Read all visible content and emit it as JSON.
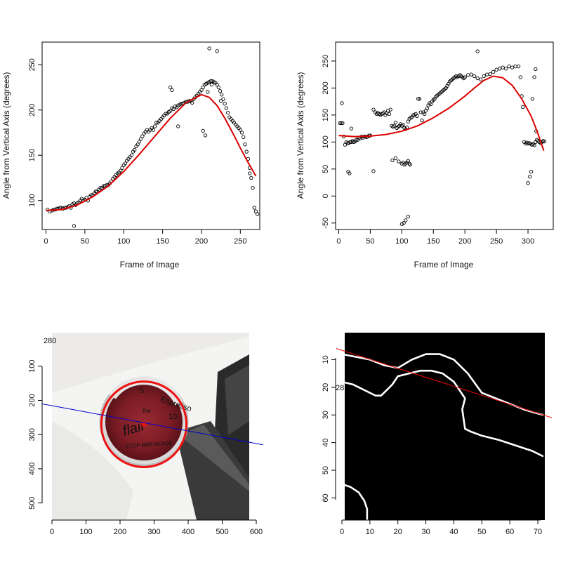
{
  "chart_data": [
    {
      "type": "scatter",
      "title": "",
      "xlabel": "Frame of Image",
      "ylabel": "Angle from Vertical Axis (degrees)",
      "xlim": [
        -5,
        275
      ],
      "ylim": [
        68,
        275
      ],
      "xticks": [
        0,
        50,
        100,
        150,
        200,
        250
      ],
      "yticks": [
        100,
        150,
        200,
        250
      ],
      "grid": false,
      "series": [
        {
          "kind": "points",
          "color": "#000000",
          "x": [
            2,
            5,
            8,
            10,
            12,
            14,
            16,
            18,
            20,
            22,
            24,
            26,
            28,
            30,
            32,
            34,
            36,
            38,
            40,
            42,
            44,
            46,
            48,
            50,
            52,
            54,
            56,
            58,
            60,
            62,
            64,
            66,
            68,
            70,
            72,
            74,
            76,
            78,
            80,
            82,
            84,
            86,
            88,
            90,
            92,
            94,
            96,
            98,
            100,
            102,
            104,
            106,
            108,
            110,
            112,
            114,
            116,
            118,
            120,
            122,
            124,
            126,
            128,
            130,
            132,
            134,
            136,
            138,
            140,
            142,
            144,
            146,
            148,
            150,
            152,
            154,
            156,
            158,
            160,
            162,
            164,
            166,
            168,
            170,
            172,
            174,
            176,
            178,
            180,
            182,
            184,
            186,
            188,
            190,
            192,
            194,
            196,
            198,
            200,
            202,
            204,
            206,
            208,
            210,
            212,
            214,
            216,
            218,
            220,
            222,
            224,
            226,
            228,
            230,
            232,
            234,
            236,
            238,
            240,
            242,
            244,
            246,
            248,
            250,
            252,
            254,
            256,
            258,
            260,
            262,
            264,
            266,
            268,
            270,
            272,
            36,
            160,
            162,
            170,
            202,
            205,
            208,
            210,
            213,
            220,
            225,
            262
          ],
          "y": [
            90,
            88,
            89,
            90,
            90,
            91,
            91,
            92,
            92,
            91,
            92,
            92,
            93,
            94,
            92,
            96,
            97,
            95,
            97,
            98,
            100,
            102,
            100,
            101,
            103,
            100,
            104,
            106,
            106,
            108,
            110,
            110,
            112,
            114,
            114,
            116,
            116,
            117,
            117,
            119,
            121,
            124,
            126,
            128,
            130,
            131,
            133,
            136,
            139,
            141,
            144,
            146,
            148,
            150,
            154,
            156,
            160,
            162,
            165,
            168,
            171,
            174,
            176,
            178,
            176,
            178,
            180,
            178,
            182,
            186,
            186,
            188,
            190,
            192,
            194,
            196,
            196,
            198,
            199,
            202,
            201,
            204,
            203,
            205,
            206,
            207,
            207,
            208,
            209,
            209,
            210,
            210,
            208,
            212,
            214,
            216,
            218,
            220,
            222,
            225,
            228,
            229,
            230,
            231,
            232,
            232,
            231,
            230,
            228,
            225,
            221,
            217,
            212,
            207,
            202,
            197,
            192,
            190,
            188,
            186,
            184,
            182,
            180,
            178,
            175,
            170,
            162,
            154,
            146,
            136,
            125,
            114,
            92,
            88,
            85,
            72,
            225,
            222,
            182,
            177,
            172,
            220,
            268,
            228,
            265,
            210,
            130
          ]
        },
        {
          "kind": "fit",
          "color": "#dd0000",
          "x": [
            0,
            20,
            40,
            60,
            80,
            100,
            120,
            140,
            160,
            180,
            200,
            210,
            220,
            230,
            240,
            250,
            260,
            270
          ],
          "y": [
            89,
            90,
            95,
            104,
            116,
            132,
            151,
            171,
            191,
            208,
            217,
            214,
            205,
            191,
            175,
            158,
            142,
            127
          ]
        }
      ]
    },
    {
      "type": "scatter",
      "title": "",
      "xlabel": "Frame of Image",
      "ylabel": "Angle from Vertical Axis (degrees)",
      "xlim": [
        -5,
        340
      ],
      "ylim": [
        -62,
        285
      ],
      "xticks": [
        0,
        50,
        100,
        150,
        200,
        250,
        300
      ],
      "yticks": [
        -50,
        0,
        50,
        100,
        150,
        200,
        250
      ],
      "grid": false,
      "series": [
        {
          "kind": "points",
          "color": "#000000",
          "x": [
            2,
            4,
            6,
            8,
            10,
            12,
            14,
            16,
            18,
            20,
            22,
            24,
            26,
            28,
            30,
            32,
            34,
            36,
            38,
            40,
            42,
            44,
            46,
            48,
            50,
            55,
            58,
            60,
            62,
            64,
            66,
            68,
            70,
            72,
            74,
            76,
            78,
            80,
            82,
            84,
            86,
            88,
            90,
            92,
            94,
            96,
            98,
            100,
            102,
            104,
            106,
            108,
            110,
            112,
            114,
            116,
            118,
            120,
            122,
            124,
            126,
            128,
            130,
            132,
            134,
            136,
            138,
            140,
            142,
            144,
            146,
            148,
            150,
            152,
            154,
            156,
            158,
            160,
            162,
            164,
            166,
            168,
            170,
            172,
            174,
            176,
            178,
            180,
            182,
            184,
            186,
            188,
            190,
            192,
            194,
            196,
            198,
            200,
            205,
            210,
            215,
            220,
            225,
            230,
            235,
            240,
            245,
            250,
            255,
            260,
            265,
            270,
            275,
            280,
            285,
            288,
            290,
            292,
            294,
            296,
            298,
            300,
            302,
            304,
            306,
            308,
            310,
            312,
            314,
            316,
            318,
            320,
            322,
            324,
            326,
            5,
            15,
            17,
            20,
            55,
            85,
            90,
            95,
            100,
            102,
            104,
            106,
            108,
            110,
            112,
            113,
            100,
            103,
            106,
            110,
            220,
            300,
            303,
            305,
            307,
            310,
            312,
            313
          ],
          "y": [
            135,
            135,
            135,
            110,
            95,
            100,
            98,
            98,
            100,
            100,
            102,
            100,
            101,
            104,
            104,
            108,
            107,
            110,
            108,
            110,
            110,
            109,
            110,
            112,
            112,
            160,
            155,
            152,
            154,
            152,
            150,
            152,
            153,
            155,
            150,
            153,
            158,
            152,
            160,
            130,
            128,
            130,
            136,
            126,
            128,
            130,
            133,
            130,
            132,
            126,
            124,
            127,
            138,
            143,
            145,
            146,
            150,
            150,
            152,
            148,
            180,
            180,
            155,
            140,
            155,
            152,
            158,
            162,
            168,
            172,
            170,
            175,
            178,
            180,
            184,
            186,
            188,
            190,
            192,
            194,
            196,
            198,
            200,
            204,
            208,
            212,
            214,
            216,
            218,
            220,
            222,
            220,
            222,
            224,
            222,
            220,
            218,
            220,
            224,
            225,
            222,
            218,
            216,
            222,
            225,
            226,
            230,
            234,
            236,
            238,
            236,
            240,
            238,
            240,
            240,
            220,
            185,
            165,
            100,
            97,
            99,
            97,
            98,
            97,
            95,
            96,
            94,
            100,
            104,
            102,
            100,
            98,
            100,
            102,
            101,
            172,
            45,
            42,
            125,
            46,
            66,
            70,
            64,
            60,
            62,
            58,
            60,
            62,
            65,
            60,
            58,
            -52,
            -50,
            -45,
            -38,
            268,
            24,
            36,
            45,
            180,
            220,
            235,
            120
          ]
        },
        {
          "kind": "fit",
          "color": "#dd0000",
          "x": [
            0,
            25,
            50,
            75,
            100,
            125,
            150,
            175,
            200,
            215,
            230,
            245,
            260,
            275,
            290,
            305,
            315,
            325
          ],
          "y": [
            112,
            110,
            111,
            114,
            120,
            130,
            145,
            163,
            185,
            200,
            214,
            222,
            219,
            205,
            180,
            148,
            118,
            84
          ]
        }
      ]
    },
    {
      "type": "image",
      "title": "",
      "xlim": [
        0,
        600
      ],
      "ylim": [
        550,
        0
      ],
      "xticks": [
        0,
        100,
        200,
        300,
        400,
        500,
        600
      ],
      "yticks": [
        100,
        200,
        300,
        400,
        500
      ],
      "annotation": "280",
      "gauge": {
        "brand": "flair",
        "top_label": "Espresso",
        "bottom_label": "STOP BREAKAGE",
        "unit": "Bar",
        "numbers": [
          "5",
          "10"
        ]
      },
      "circle": {
        "cx": 270,
        "cy": 270,
        "r": 125,
        "color": "#ee1111"
      },
      "center_point": {
        "x": 270,
        "y": 270
      },
      "line": {
        "x": [
          -30,
          620
        ],
        "y": [
          210,
          330
        ],
        "color": "#0000cc"
      }
    },
    {
      "type": "image",
      "title": "",
      "xlim": [
        0,
        72
      ],
      "ylim": [
        68,
        0
      ],
      "xticks": [
        0,
        10,
        20,
        30,
        40,
        50,
        60,
        70
      ],
      "yticks": [
        10,
        20,
        30,
        40,
        50,
        60
      ],
      "annotation": "28",
      "line": {
        "x": [
          -2,
          75
        ],
        "y": [
          6,
          31
        ],
        "color": "#ee0000"
      },
      "edges": [
        {
          "x": [
            0,
            5,
            10,
            15,
            20,
            25,
            30,
            35,
            40,
            45,
            50,
            55,
            60,
            65,
            70,
            72
          ],
          "y": [
            8,
            9,
            10,
            12,
            13,
            10,
            8,
            8,
            10,
            15,
            22,
            24,
            26,
            28,
            29.5,
            30
          ]
        },
        {
          "x": [
            0,
            4,
            8,
            12,
            14,
            16,
            18,
            20,
            24,
            28,
            32,
            36,
            40,
            42,
            44,
            43,
            44,
            46,
            50,
            56,
            62,
            68,
            72
          ],
          "y": [
            18,
            19,
            21,
            23,
            23,
            21,
            19,
            16,
            15,
            14,
            14,
            15,
            18,
            21,
            24,
            28,
            35,
            36,
            37.5,
            39,
            41,
            43,
            45
          ]
        },
        {
          "x": [
            0,
            3,
            6,
            8,
            9,
            9
          ],
          "y": [
            55,
            56,
            58,
            61,
            64,
            68
          ]
        }
      ]
    }
  ]
}
